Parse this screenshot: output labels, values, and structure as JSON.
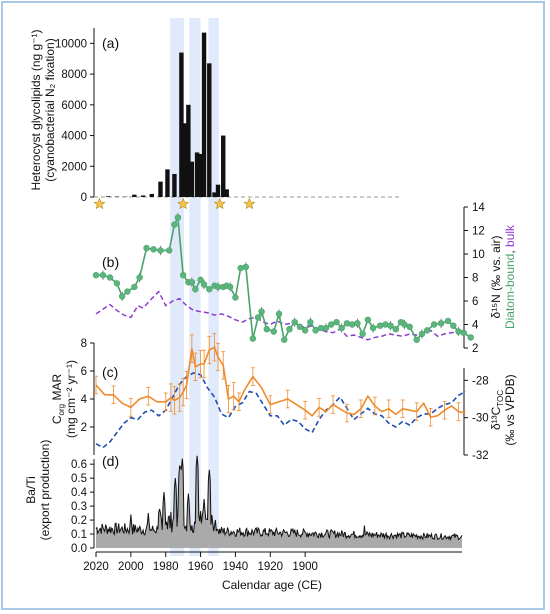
{
  "figure": {
    "panels": [
      "(a)",
      "(b)",
      "(c)",
      "(d)"
    ],
    "x_axis_label": "Calendar age (CE)"
  },
  "colors": {
    "bars": "#111111",
    "diatom": "#4aa36a",
    "diatom_marker": "#5cb57c",
    "bulk": "#8a3fd0",
    "corg": "#ef8a2c",
    "d13c": "#1f4fb5",
    "batl": "#111111",
    "batl_fill": "#aaaaaa",
    "shade": "#dbe6f9",
    "star": "#f6c44a"
  },
  "chart_data": [
    {
      "panel": "(a)",
      "type": "bar",
      "ylabel_line1": "Heterocyst glycolipids (ng g⁻¹)",
      "ylabel_line2": "(cyanobacterial N₂ fixation)",
      "ylim": [
        0,
        11000
      ],
      "yticks": [
        0,
        2000,
        4000,
        6000,
        8000,
        10000
      ],
      "years": [
        2018,
        2013,
        2008,
        2003,
        1998,
        1993,
        1988,
        1983,
        1979,
        1975,
        1971,
        1969,
        1967,
        1965,
        1962,
        1960,
        1958,
        1955,
        1952,
        1950,
        1947,
        1945,
        1943,
        1939,
        1933,
        1928,
        1923,
        1918
      ],
      "values": [
        0,
        50,
        30,
        20,
        150,
        100,
        200,
        1000,
        1800,
        1500,
        9400,
        4800,
        6000,
        2300,
        2900,
        2800,
        10700,
        8700,
        300,
        800,
        4000,
        500,
        0,
        0,
        0,
        0,
        0,
        0
      ],
      "shaded_periods": [
        [
          1977.5,
          1969.5
        ],
        [
          1966.5,
          1960.0
        ],
        [
          1955.5,
          1949.5
        ]
      ],
      "stars": [
        2018,
        1970,
        1949,
        1932
      ]
    },
    {
      "panel": "(b)",
      "type": "line",
      "ylabel_parts": [
        "δ¹⁵N (‰ vs. air)",
        "Diatom-bound",
        ", ",
        "bulk"
      ],
      "ylim": [
        2,
        14
      ],
      "yticks": [
        2,
        4,
        6,
        8,
        10,
        12,
        14
      ],
      "series": [
        {
          "name": "Diatom-bound",
          "x": [
            2020,
            2016,
            2012,
            2008,
            2005,
            2002,
            1998,
            1995,
            1991,
            1987,
            1983,
            1978,
            1975,
            1973,
            1970,
            1967,
            1965,
            1963,
            1960,
            1958,
            1955,
            1952,
            1950,
            1947,
            1945,
            1943,
            1940,
            1937,
            1934,
            1930,
            1927,
            1925,
            1922,
            1918,
            1915,
            1912,
            1909,
            1906,
            1903,
            1900,
            1897,
            1894,
            1891,
            1888,
            1885,
            1882,
            1879,
            1876,
            1873,
            1870,
            1867,
            1864,
            1861,
            1857,
            1854,
            1851,
            1848,
            1845,
            1843,
            1840,
            1836,
            1833,
            1830,
            1826,
            1822,
            1818,
            1815,
            1812,
            1809,
            1805
          ],
          "y": [
            8.2,
            8.2,
            8.0,
            7.5,
            6.4,
            6.8,
            7.2,
            8.0,
            10.5,
            10.4,
            10.3,
            10.3,
            12.5,
            13.1,
            8.2,
            7.6,
            7.6,
            7.0,
            7.8,
            7.4,
            7.0,
            7.3,
            7.2,
            7.2,
            7.3,
            7.2,
            6.3,
            8.8,
            8.9,
            2.8,
            4.6,
            5.1,
            3.6,
            3.4,
            4.9,
            2.7,
            3.6,
            4.2,
            3.8,
            3.5,
            4.2,
            3.5,
            3.7,
            3.7,
            4.0,
            4.2,
            3.7,
            4.1,
            4.0,
            4.1,
            3.2,
            4.4,
            3.7,
            3.9,
            4.0,
            3.9,
            3.6,
            4.2,
            4.0,
            3.8,
            2.7,
            3.2,
            3.5,
            4.0,
            4.1,
            4.3,
            3.9,
            3.4,
            3.3,
            2.9
          ],
          "y_error": 0.4
        },
        {
          "name": "bulk",
          "x": [
            2020,
            2016,
            2012,
            2008,
            2004,
            2000,
            1996,
            1993,
            1988,
            1984,
            1980,
            1976,
            1972,
            1968,
            1964,
            1960,
            1956,
            1952,
            1948,
            1944,
            1940,
            1936,
            1932,
            1928,
            1924,
            1920,
            1916,
            1912,
            1908,
            1904,
            1900,
            1896,
            1892,
            1888,
            1884,
            1880,
            1876,
            1872,
            1868,
            1864,
            1860,
            1856,
            1852,
            1848,
            1844,
            1840,
            1836,
            1832,
            1828,
            1824,
            1820,
            1816,
            1812,
            1808
          ],
          "y": [
            4.9,
            5.3,
            5.7,
            5.2,
            4.8,
            4.6,
            5.6,
            5.4,
            6.2,
            6.8,
            5.6,
            6.0,
            6.2,
            5.6,
            5.2,
            5.1,
            5.0,
            4.8,
            4.9,
            4.7,
            4.4,
            4.2,
            4.5,
            4.6,
            4.2,
            4.0,
            4.3,
            4.0,
            4.1,
            4.0,
            3.7,
            3.9,
            3.6,
            3.4,
            3.3,
            3.6,
            3.0,
            3.1,
            2.9,
            2.7,
            2.9,
            3.0,
            3.2,
            3.1,
            3.0,
            3.2,
            3.1,
            3.3,
            3.5,
            3.0,
            3.2,
            3.3,
            3.4,
            3.3
          ]
        }
      ]
    },
    {
      "panel": "(c)",
      "type": "line",
      "ylabel_left": [
        "C",
        "org",
        " MAR",
        "(mg cm⁻² yr⁻¹)"
      ],
      "ylabel_right": [
        "δ¹³C",
        "TOC",
        "(‰ vs VPDB)"
      ],
      "ylim_left": [
        0,
        8
      ],
      "yticks_left": [
        0,
        2,
        4,
        6,
        8
      ],
      "ylim_right": [
        -32,
        -26
      ],
      "yticks_right": [
        -32,
        -30,
        -28
      ],
      "series": [
        {
          "name": "Corg MAR",
          "axis": "left",
          "x": [
            2020,
            2015,
            2010,
            2005,
            2000,
            1995,
            1990,
            1985,
            1980,
            1977,
            1975,
            1972,
            1970,
            1968,
            1965,
            1963,
            1960,
            1958,
            1955,
            1952,
            1950,
            1947,
            1944,
            1941,
            1938,
            1935,
            1930,
            1925,
            1920,
            1915,
            1910,
            1905,
            1900,
            1896,
            1892,
            1888,
            1884,
            1880,
            1876,
            1872,
            1868,
            1864,
            1860,
            1856,
            1852,
            1848,
            1844,
            1840,
            1836,
            1832,
            1828,
            1824,
            1820,
            1816,
            1812,
            1808
          ],
          "y": [
            5.0,
            4.3,
            4.3,
            3.7,
            3.4,
            4.0,
            4.2,
            3.8,
            3.8,
            4.1,
            3.9,
            4.1,
            4.5,
            5.0,
            7.6,
            6.3,
            6.5,
            6.5,
            7.5,
            7.7,
            7.0,
            6.4,
            4.0,
            4.2,
            3.8,
            4.6,
            5.6,
            4.8,
            3.6,
            3.8,
            4.0,
            3.6,
            3.2,
            2.8,
            3.4,
            3.1,
            3.6,
            3.3,
            3.0,
            2.9,
            3.3,
            4.2,
            3.5,
            3.1,
            3.3,
            2.9,
            3.3,
            3.2,
            3.1,
            3.7,
            2.7,
            2.8,
            3.2,
            3.5,
            3.1,
            3.0
          ],
          "y_error": 0.7
        },
        {
          "name": "δ13C TOC",
          "axis": "right",
          "x": [
            2020,
            2016,
            2012,
            2008,
            2004,
            2000,
            1996,
            1992,
            1988,
            1984,
            1980,
            1976,
            1972,
            1968,
            1964,
            1960,
            1956,
            1952,
            1948,
            1944,
            1940,
            1936,
            1932,
            1928,
            1924,
            1920,
            1916,
            1912,
            1908,
            1904,
            1900,
            1896,
            1892,
            1888,
            1884,
            1880,
            1876,
            1872,
            1868,
            1864,
            1860,
            1856,
            1852,
            1848,
            1844,
            1840,
            1836,
            1832,
            1828,
            1824,
            1820,
            1816,
            1812,
            1808
          ],
          "y": [
            -31.4,
            -31.6,
            -31.3,
            -30.8,
            -30.3,
            -30.0,
            -30.1,
            -29.7,
            -29.6,
            -29.9,
            -29.6,
            -28.9,
            -28.2,
            -27.8,
            -27.6,
            -27.7,
            -28.4,
            -28.9,
            -29.8,
            -30.0,
            -29.4,
            -29.2,
            -28.6,
            -28.7,
            -29.3,
            -29.9,
            -29.9,
            -30.4,
            -30.1,
            -30.2,
            -30.6,
            -30.8,
            -30.1,
            -29.6,
            -29.3,
            -28.9,
            -29.5,
            -30.1,
            -29.8,
            -29.5,
            -29.8,
            -29.9,
            -30.3,
            -30.5,
            -30.2,
            -30.4,
            -30.0,
            -29.8,
            -29.8,
            -29.5,
            -29.3,
            -29.2,
            -28.8,
            -28.6
          ]
        }
      ]
    },
    {
      "panel": "(d)",
      "type": "area",
      "ylabel_line1": "Ba/Ti",
      "ylabel_line2": "(export production)",
      "ylim": [
        0,
        0.68
      ],
      "yticks": [
        0.0,
        0.1,
        0.2,
        0.3,
        0.4,
        0.5,
        0.6
      ],
      "x_range": [
        2020,
        1810
      ],
      "baseline": 0.08,
      "peaks": [
        {
          "x": 1970.5,
          "y": 0.64
        },
        {
          "x": 1971.8,
          "y": 0.62
        },
        {
          "x": 1974.5,
          "y": 0.5
        },
        {
          "x": 1962.0,
          "y": 0.66
        },
        {
          "x": 1981.0,
          "y": 0.4
        },
        {
          "x": 1967.0,
          "y": 0.39
        },
        {
          "x": 1955.0,
          "y": 0.56
        },
        {
          "x": 1958.0,
          "y": 0.35
        },
        {
          "x": 2000.0,
          "y": 0.24
        },
        {
          "x": 1990.0,
          "y": 0.25
        },
        {
          "x": 1866.0,
          "y": 0.16
        }
      ]
    }
  ],
  "x_axis": {
    "range": [
      2020,
      1810
    ],
    "ticks": [
      2020,
      2000,
      1980,
      1960,
      1940,
      1920,
      1900
    ]
  }
}
